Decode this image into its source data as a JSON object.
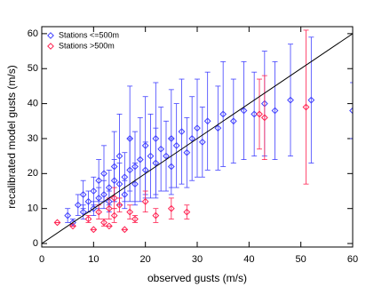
{
  "chart_data": {
    "type": "scatter",
    "x_label": "observed gusts (m/s)",
    "y_label": "recalibrated model gusts (m/s)",
    "xlim": [
      0,
      60
    ],
    "ylim": [
      -1,
      62
    ],
    "xticks": [
      0,
      10,
      20,
      30,
      40,
      50,
      60
    ],
    "yticks": [
      0,
      10,
      20,
      30,
      40,
      50,
      60
    ],
    "legend": "upper left",
    "series": [
      {
        "name": "Stations <=500m",
        "color": "#4040ff",
        "x": [
          5,
          6,
          7,
          8,
          8,
          9,
          10,
          10,
          11,
          11,
          12,
          12,
          13,
          13,
          14,
          14,
          15,
          15,
          16,
          16,
          17,
          17,
          18,
          18,
          19,
          20,
          20,
          21,
          22,
          22,
          23,
          24,
          25,
          25,
          26,
          27,
          28,
          29,
          30,
          31,
          32,
          34,
          35,
          37,
          39,
          41,
          43,
          45,
          48,
          52,
          60
        ],
        "values": [
          8,
          6,
          11,
          9,
          14,
          12,
          10,
          15,
          13,
          18,
          14,
          20,
          16,
          12,
          18,
          22,
          17,
          25,
          19,
          14,
          21,
          30,
          22,
          17,
          24,
          21,
          28,
          25,
          23,
          30,
          27,
          25,
          30,
          22,
          28,
          32,
          26,
          30,
          33,
          29,
          35,
          33,
          37,
          35,
          38,
          37,
          40,
          38,
          41,
          41,
          38
        ],
        "errors": [
          2,
          1,
          3,
          2,
          4,
          3,
          2,
          4,
          3,
          6,
          4,
          8,
          5,
          3,
          6,
          10,
          6,
          12,
          7,
          4,
          9,
          15,
          10,
          6,
          12,
          8,
          14,
          12,
          10,
          16,
          12,
          10,
          14,
          8,
          12,
          15,
          10,
          12,
          14,
          10,
          14,
          12,
          15,
          12,
          14,
          12,
          15,
          14,
          16,
          18,
          8
        ]
      },
      {
        "name": "Stations >500m",
        "color": "#ff2050",
        "x": [
          3,
          6,
          9,
          10,
          11,
          12,
          13,
          13,
          14,
          14,
          15,
          16,
          17,
          18,
          20,
          22,
          25,
          28,
          42,
          43,
          51
        ],
        "values": [
          6,
          5,
          7,
          4,
          9,
          6,
          10,
          5,
          13,
          8,
          11,
          4,
          9,
          7,
          12,
          8,
          10,
          9,
          37,
          36,
          39
        ],
        "errors": [
          0,
          0,
          1,
          0,
          2,
          1,
          3,
          0,
          3,
          2,
          2,
          0,
          2,
          1,
          3,
          2,
          3,
          2,
          10,
          12,
          22
        ]
      }
    ]
  }
}
